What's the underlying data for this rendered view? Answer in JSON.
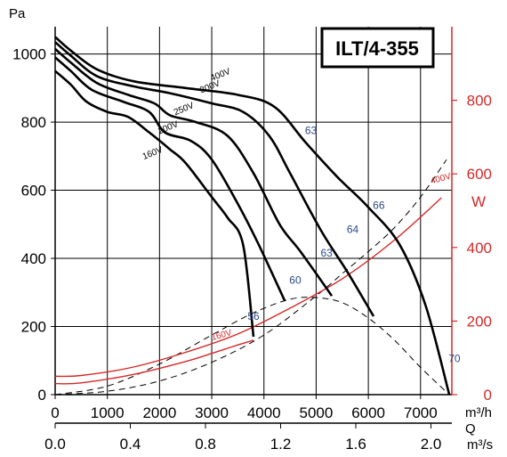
{
  "chart_data": {
    "type": "line",
    "title": "ILT/4-355",
    "ylabel_left": "Pa",
    "ylabel_right": "W",
    "xlabel_primary": "m³/h",
    "xlabel_secondary_prefix": "Q",
    "xlabel_secondary": "m³/s",
    "xlim": [
      0,
      7600
    ],
    "ylim_left": [
      0,
      1080
    ],
    "ylim_right": [
      0,
      1000
    ],
    "x_ticks": [
      "0",
      "1000",
      "2000",
      "3000",
      "4000",
      "5000",
      "6000",
      "7000"
    ],
    "x_ticks_values": [
      0,
      1000,
      2000,
      3000,
      4000,
      5000,
      6000,
      7000
    ],
    "x2_ticks": [
      "0.0",
      "0.4",
      "0.8",
      "1.2",
      "1.6",
      "2.0"
    ],
    "x2_ticks_values": [
      0,
      0.4,
      0.8,
      1.2,
      1.6,
      2.0
    ],
    "y_ticks": [
      "0",
      "200",
      "400",
      "600",
      "800",
      "1000"
    ],
    "y_ticks_values": [
      0,
      200,
      400,
      600,
      800,
      1000
    ],
    "y2_ticks": [
      "0",
      "200",
      "400",
      "600",
      "800"
    ],
    "y2_ticks_values": [
      0,
      200,
      400,
      600,
      800
    ],
    "grid": true,
    "pressure_series": [
      {
        "name": "400V",
        "x": [
          0,
          300,
          800,
          1500,
          2500,
          3500,
          4200,
          4800,
          5400,
          6000,
          6600,
          7100,
          7550
        ],
        "y": [
          1050,
          1010,
          955,
          920,
          900,
          880,
          845,
          740,
          640,
          550,
          440,
          260,
          0
        ]
      },
      {
        "name": "300V",
        "x": [
          0,
          300,
          800,
          1500,
          2200,
          3000,
          3600,
          4100,
          4500,
          5100,
          5600,
          6100
        ],
        "y": [
          1035,
          995,
          935,
          905,
          885,
          855,
          830,
          760,
          650,
          480,
          360,
          230
        ]
      },
      {
        "name": "250V",
        "x": [
          0,
          300,
          800,
          1400,
          1900,
          2200,
          2700,
          3300,
          3800,
          4300,
          4700,
          5300
        ],
        "y": [
          1015,
          975,
          915,
          880,
          855,
          820,
          800,
          760,
          650,
          500,
          420,
          290
        ]
      },
      {
        "name": "200V",
        "x": [
          0,
          300,
          700,
          1300,
          1800,
          2100,
          2600,
          3000,
          3500,
          3900,
          4400
        ],
        "y": [
          990,
          950,
          895,
          860,
          830,
          770,
          745,
          690,
          560,
          440,
          275
        ]
      },
      {
        "name": "160V",
        "x": [
          0,
          300,
          600,
          1000,
          1400,
          1800,
          2200,
          2500,
          3000,
          3300,
          3600,
          3800
        ],
        "y": [
          950,
          910,
          860,
          830,
          815,
          770,
          720,
          680,
          580,
          520,
          440,
          170
        ]
      }
    ],
    "power_series": [
      {
        "name": "400V",
        "x": [
          0,
          500,
          1500,
          2500,
          3500,
          4500,
          5500,
          6500,
          7400
        ],
        "y": [
          50,
          52,
          75,
          115,
          165,
          235,
          315,
          420,
          535
        ]
      },
      {
        "name": "160V",
        "x": [
          0,
          500,
          1500,
          2500,
          3000,
          3500,
          3800
        ],
        "y": [
          30,
          32,
          55,
          90,
          112,
          135,
          148
        ]
      }
    ],
    "system_curve": {
      "x": [
        0,
        1000,
        2000,
        3000,
        4000,
        5000,
        5500,
        6000,
        6500,
        7000,
        7500
      ],
      "y": [
        0,
        10,
        40,
        95,
        175,
        290,
        355,
        420,
        490,
        580,
        690
      ]
    },
    "efficiency_curve": {
      "x": [
        0,
        1000,
        2000,
        3000,
        3800,
        4500,
        5000,
        5500,
        6000,
        6500,
        7000,
        7550
      ],
      "y": [
        0,
        25,
        90,
        175,
        240,
        280,
        285,
        270,
        225,
        160,
        80,
        0
      ]
    },
    "efficiency_labels": [
      "56",
      "60",
      "63",
      "64",
      "66",
      "63",
      "70"
    ],
    "efficiency_label_points": [
      {
        "x": 3800,
        "y": 220
      },
      {
        "x": 4600,
        "y": 325
      },
      {
        "x": 5200,
        "y": 405
      },
      {
        "x": 5700,
        "y": 475
      },
      {
        "x": 6200,
        "y": 545
      },
      {
        "x": 4900,
        "y": 765
      },
      {
        "x": 7650,
        "y": 95
      }
    ],
    "pressure_label_points": [
      {
        "x": 3000,
        "y": 920
      },
      {
        "x": 2800,
        "y": 885
      },
      {
        "x": 2300,
        "y": 820
      },
      {
        "x": 2000,
        "y": 765
      },
      {
        "x": 1700,
        "y": 690
      }
    ],
    "power_label_points": [
      {
        "x": 7400,
        "y": 580
      },
      {
        "x": 3200,
        "y": 155
      }
    ]
  }
}
